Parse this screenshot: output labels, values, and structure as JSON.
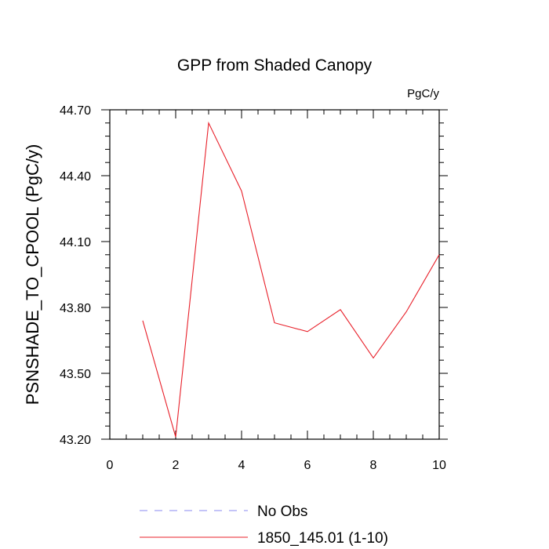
{
  "chart_data": {
    "type": "line",
    "title": "GPP from Shaded Canopy",
    "units_label": "PgC/y",
    "ylabel": "PSNSHADE_TO_CPOOL  (PgC/y)",
    "xlabel": "",
    "xlim": [
      0,
      10
    ],
    "ylim": [
      43.2,
      44.7
    ],
    "x_ticks": [
      0,
      2,
      4,
      6,
      8,
      10
    ],
    "x_tick_labels": [
      "0",
      "2",
      "4",
      "6",
      "8",
      "10"
    ],
    "y_ticks": [
      43.2,
      43.5,
      43.8,
      44.1,
      44.4,
      44.7
    ],
    "y_tick_labels": [
      "43.20",
      "43.50",
      "43.80",
      "44.10",
      "44.40",
      "44.70"
    ],
    "grid": false,
    "legend_position": "bottom",
    "series": [
      {
        "name": "1850_145.01 (1-10)",
        "color": "#e8202a",
        "style": "solid",
        "x": [
          1,
          2,
          3,
          4,
          5,
          6,
          7,
          8,
          9,
          10
        ],
        "y": [
          43.74,
          43.21,
          44.64,
          44.33,
          43.73,
          43.69,
          43.79,
          43.57,
          43.78,
          44.04
        ]
      }
    ],
    "legend": [
      {
        "label": "No Obs",
        "color": "#8a8af0",
        "style": "dashed"
      },
      {
        "label": "1850_145.01 (1-10)",
        "color": "#e8202a",
        "style": "solid"
      }
    ]
  }
}
